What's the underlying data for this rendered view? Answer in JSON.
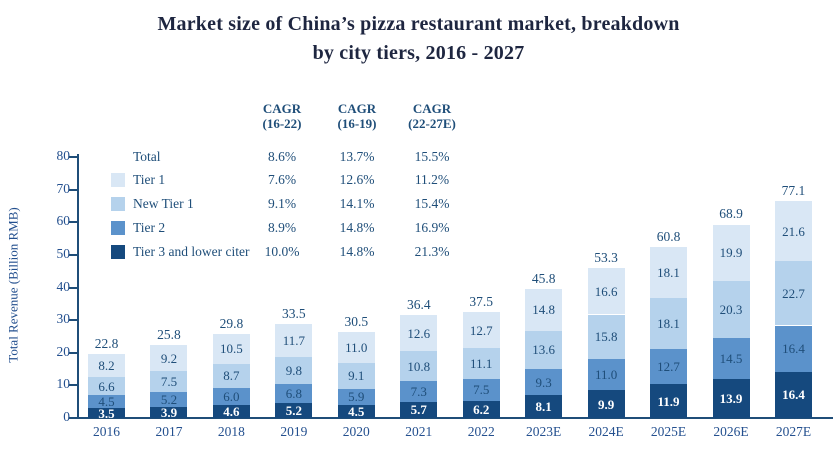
{
  "title": {
    "line1": "Market size of China’s pizza restaurant market, breakdown",
    "line2": "by city tiers, 2016 - 2027"
  },
  "cagr_table": {
    "columns": [
      {
        "line1": "CAGR",
        "line2": "(16-22)"
      },
      {
        "line1": "CAGR",
        "line2": "(16-19)"
      },
      {
        "line1": "CAGR",
        "line2": "(22-27E)"
      }
    ],
    "rows": [
      {
        "label": "Total",
        "values": [
          "8.6%",
          "13.7%",
          "15.5%"
        ]
      },
      {
        "label": "Tier 1",
        "values": [
          "7.6%",
          "12.6%",
          "11.2%"
        ]
      },
      {
        "label": "New Tier 1",
        "values": [
          "9.1%",
          "14.1%",
          "15.4%"
        ]
      },
      {
        "label": "Tier 2",
        "values": [
          "8.9%",
          "14.8%",
          "16.9%"
        ]
      },
      {
        "label": "Tier 3 and lower citer",
        "values": [
          "10.0%",
          "14.8%",
          "21.3%"
        ]
      }
    ]
  },
  "chart_data": {
    "type": "bar",
    "stacked": true,
    "title": "Market size of China’s pizza restaurant market, breakdown by city tiers, 2016 - 2027",
    "xlabel": "",
    "ylabel": "Total Revenue (Billion RMB)",
    "ylim": [
      0,
      80
    ],
    "yticks": [
      0,
      10,
      20,
      30,
      40,
      50,
      60,
      70,
      80
    ],
    "grid": false,
    "legend_position": "upper-left",
    "categories": [
      "2016",
      "2017",
      "2018",
      "2019",
      "2020",
      "2021",
      "2022",
      "2023E",
      "2024E",
      "2025E",
      "2026E",
      "2027E"
    ],
    "series": [
      {
        "name": "Tier 1",
        "color": "#d9e7f5",
        "label_color": "#1f4e79",
        "values": [
          8.2,
          9.2,
          10.5,
          11.7,
          11.0,
          12.6,
          12.7,
          14.8,
          16.6,
          18.1,
          19.9,
          21.6
        ]
      },
      {
        "name": "New Tier 1",
        "color": "#b5d2ec",
        "label_color": "#1f4e79",
        "values": [
          6.6,
          7.5,
          8.7,
          9.8,
          9.1,
          10.8,
          11.1,
          13.6,
          15.8,
          18.1,
          20.3,
          22.7
        ]
      },
      {
        "name": "Tier 2",
        "color": "#5b92cb",
        "label_color": "#1f4e79",
        "values": [
          4.5,
          5.2,
          6.0,
          6.8,
          5.9,
          7.3,
          7.5,
          9.3,
          11.0,
          12.7,
          14.5,
          16.4
        ]
      },
      {
        "name": "Tier 3 and lower citer",
        "color": "#15497e",
        "label_color": "#ffffff",
        "values": [
          3.5,
          3.9,
          4.6,
          5.2,
          4.5,
          5.7,
          6.2,
          8.1,
          9.9,
          11.9,
          13.9,
          16.4
        ]
      }
    ],
    "totals": [
      22.8,
      25.8,
      29.8,
      33.5,
      30.5,
      36.4,
      37.5,
      45.8,
      53.3,
      60.8,
      68.9,
      77.1
    ]
  },
  "colors": {
    "axis": "#1f4e79",
    "tick_text": "#24508f",
    "value_text": "#1f4e79",
    "title_text": "#1e2640"
  }
}
